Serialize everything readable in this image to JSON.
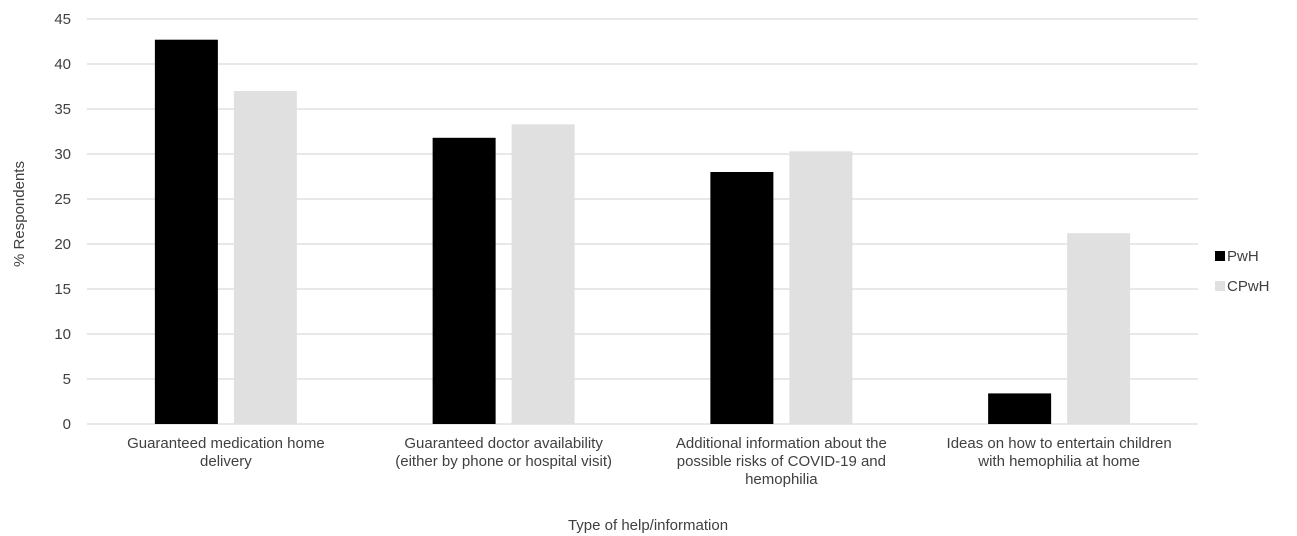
{
  "chart_data": {
    "type": "bar",
    "title": "",
    "xlabel": "Type of help/information",
    "ylabel": "% Respondents",
    "ylim": [
      0,
      45
    ],
    "yticks": [
      0,
      5,
      10,
      15,
      20,
      25,
      30,
      35,
      40,
      45
    ],
    "ytick_labels": [
      "0",
      "5",
      "10",
      "15",
      "20",
      "25",
      "30",
      "35",
      "40",
      "45"
    ],
    "grid": true,
    "legend_position": "right",
    "categories": [
      [
        "Guaranteed medication home",
        "delivery"
      ],
      [
        "Guaranteed doctor availability",
        "(either by phone or hospital visit)"
      ],
      [
        "Additional information about the",
        "possible risks of COVID-19 and",
        "hemophilia"
      ],
      [
        "Ideas on how to entertain children",
        "with hemophilia at home"
      ]
    ],
    "series": [
      {
        "name": "PwH",
        "color": "#000000",
        "values": [
          42.7,
          31.8,
          28.0,
          3.4
        ]
      },
      {
        "name": "CPwH",
        "color": "#e0e0e0",
        "values": [
          37.0,
          33.3,
          30.3,
          21.2
        ]
      }
    ],
    "colors": {
      "grid": "#d9d9d9",
      "text": "#404040"
    }
  }
}
